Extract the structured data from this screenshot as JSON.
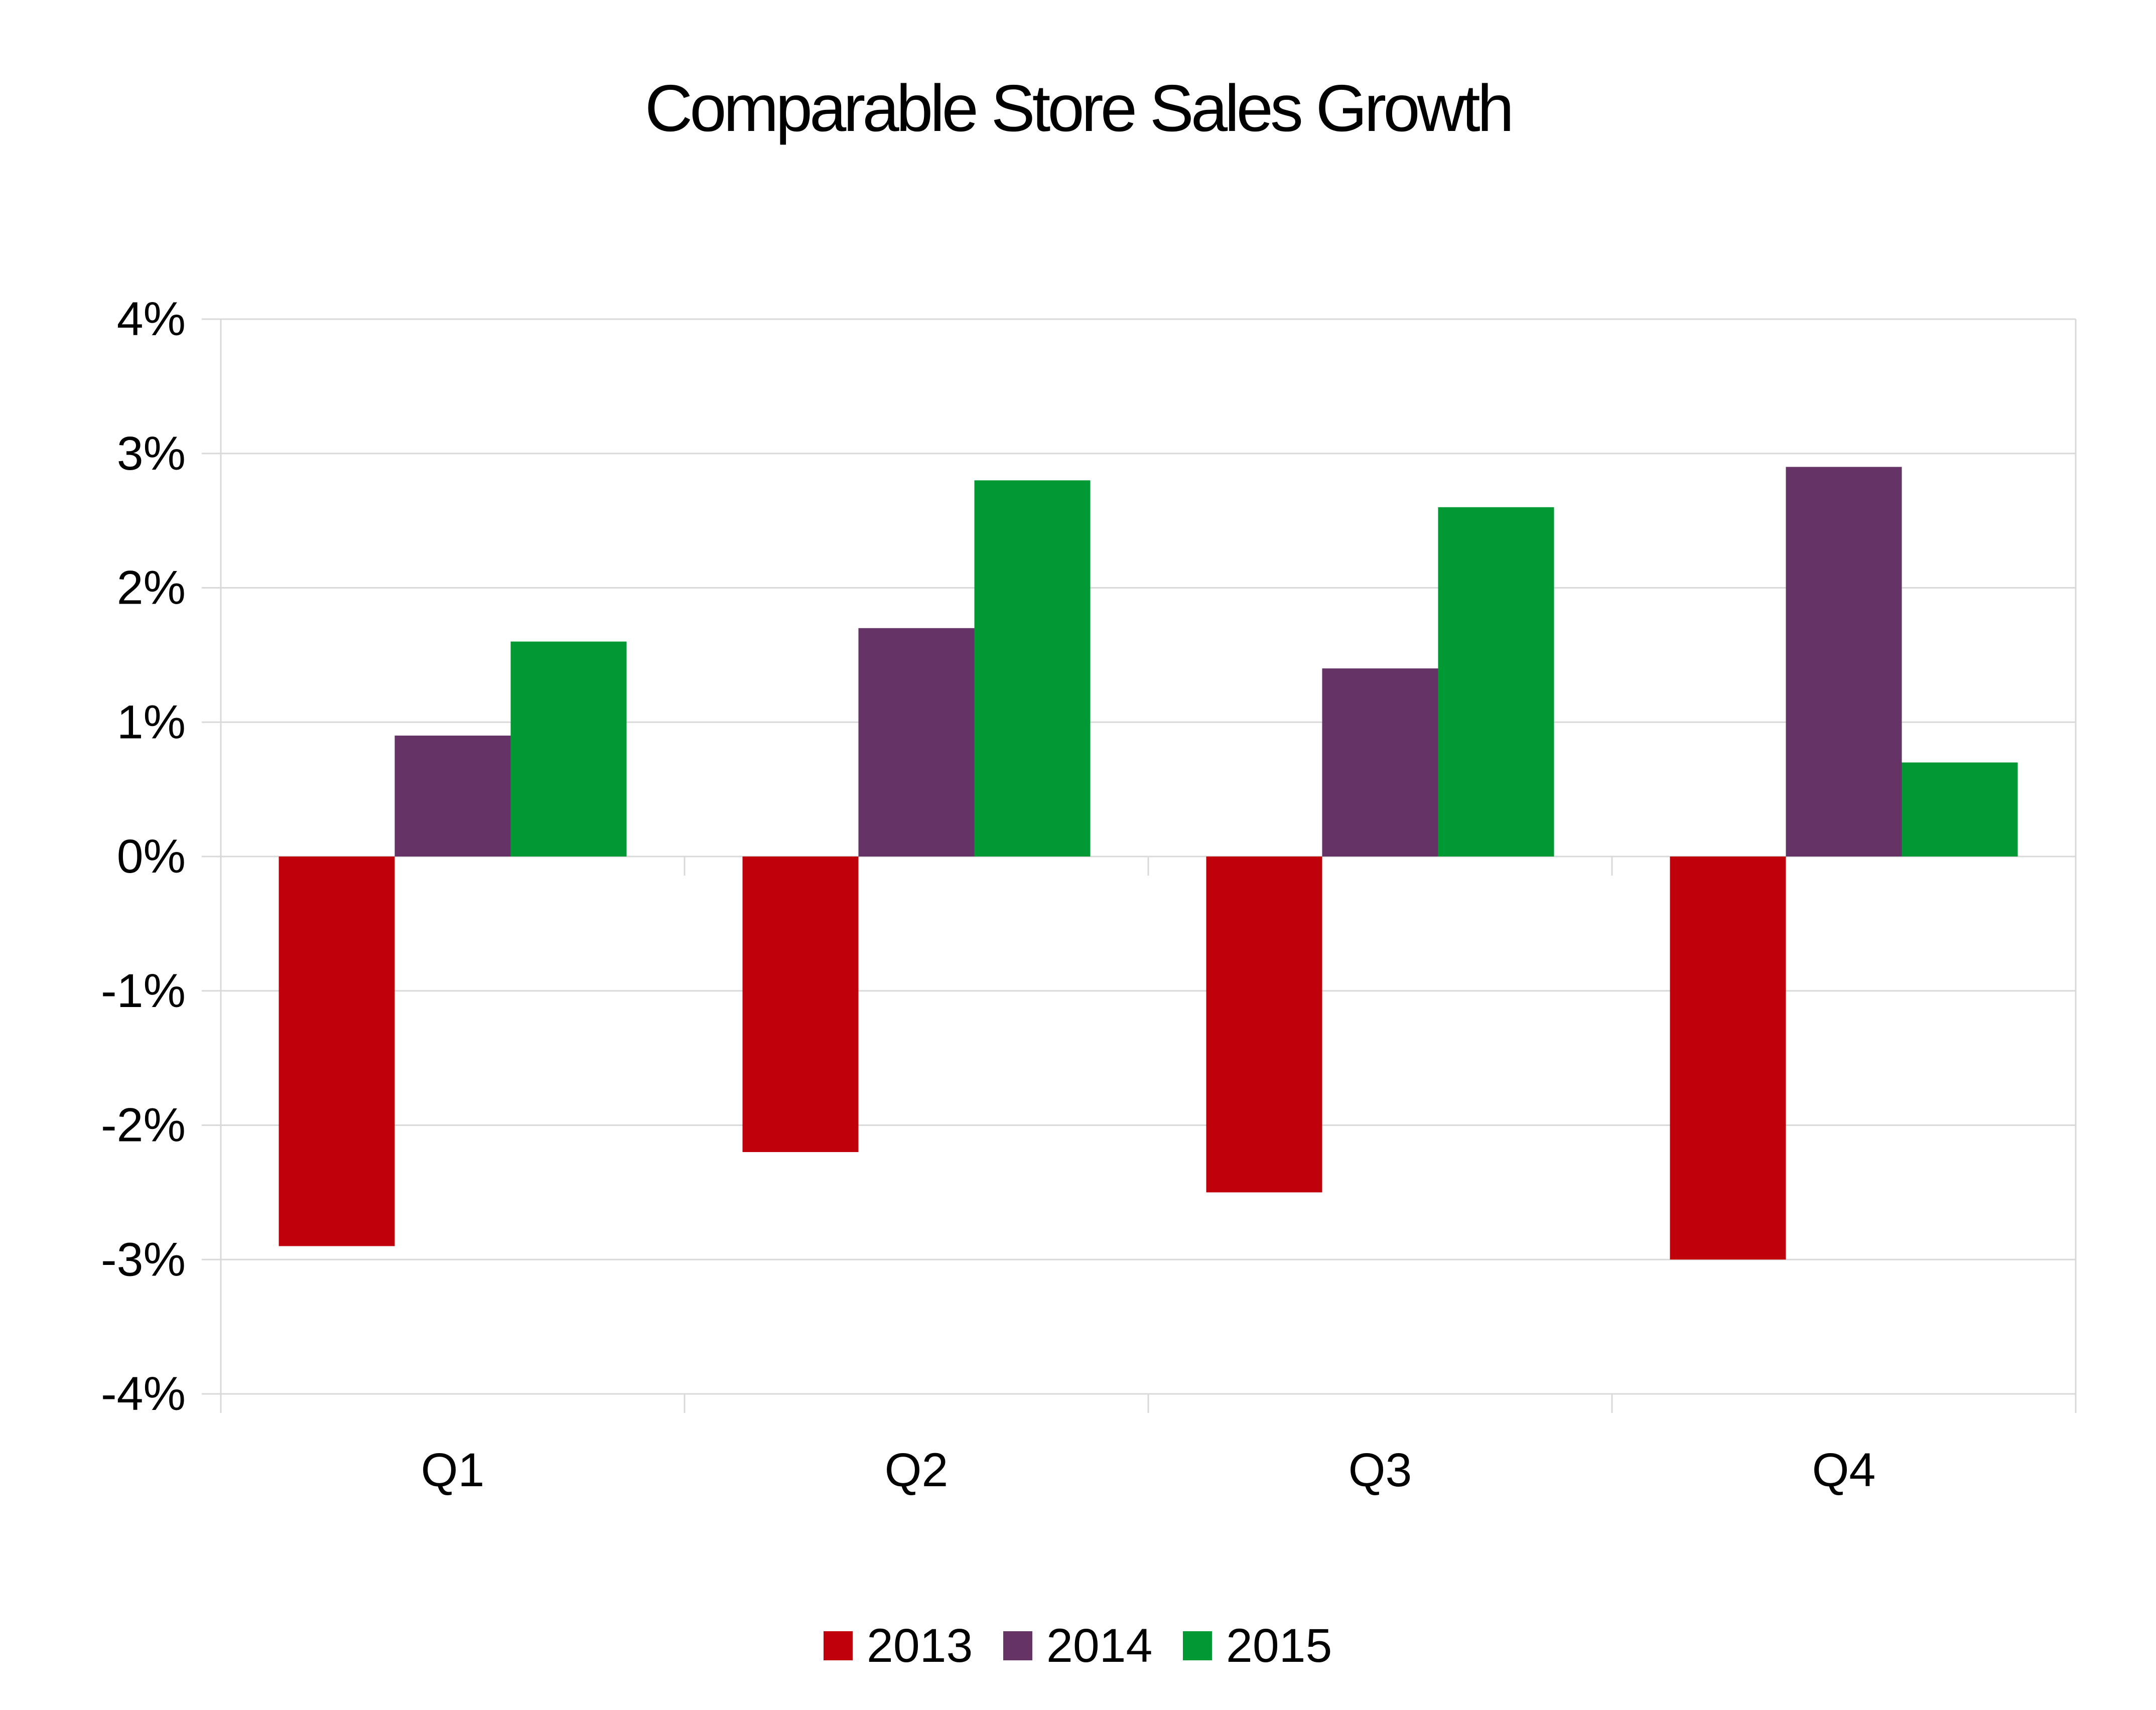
{
  "chart_data": {
    "type": "bar",
    "title": "Comparable Store Sales Growth",
    "xlabel": "",
    "ylabel": "",
    "categories": [
      "Q1",
      "Q2",
      "Q3",
      "Q4"
    ],
    "series": [
      {
        "name": "2013",
        "color": "#c0000b",
        "values": [
          -2.9,
          -2.2,
          -2.5,
          -3.0
        ]
      },
      {
        "name": "2014",
        "color": "#663366",
        "values": [
          0.9,
          1.7,
          1.4,
          2.9
        ]
      },
      {
        "name": "2015",
        "color": "#009933",
        "values": [
          1.6,
          2.8,
          2.6,
          0.7
        ]
      }
    ],
    "ylim": [
      -4,
      4
    ],
    "yticks": [
      4,
      3,
      2,
      1,
      0,
      -1,
      -2,
      -3,
      -4
    ],
    "ytick_labels": [
      "4%",
      "3%",
      "2%",
      "1%",
      "0%",
      "-1%",
      "-2%",
      "-3%",
      "-4%"
    ],
    "grid": true,
    "legend_position": "bottom"
  }
}
